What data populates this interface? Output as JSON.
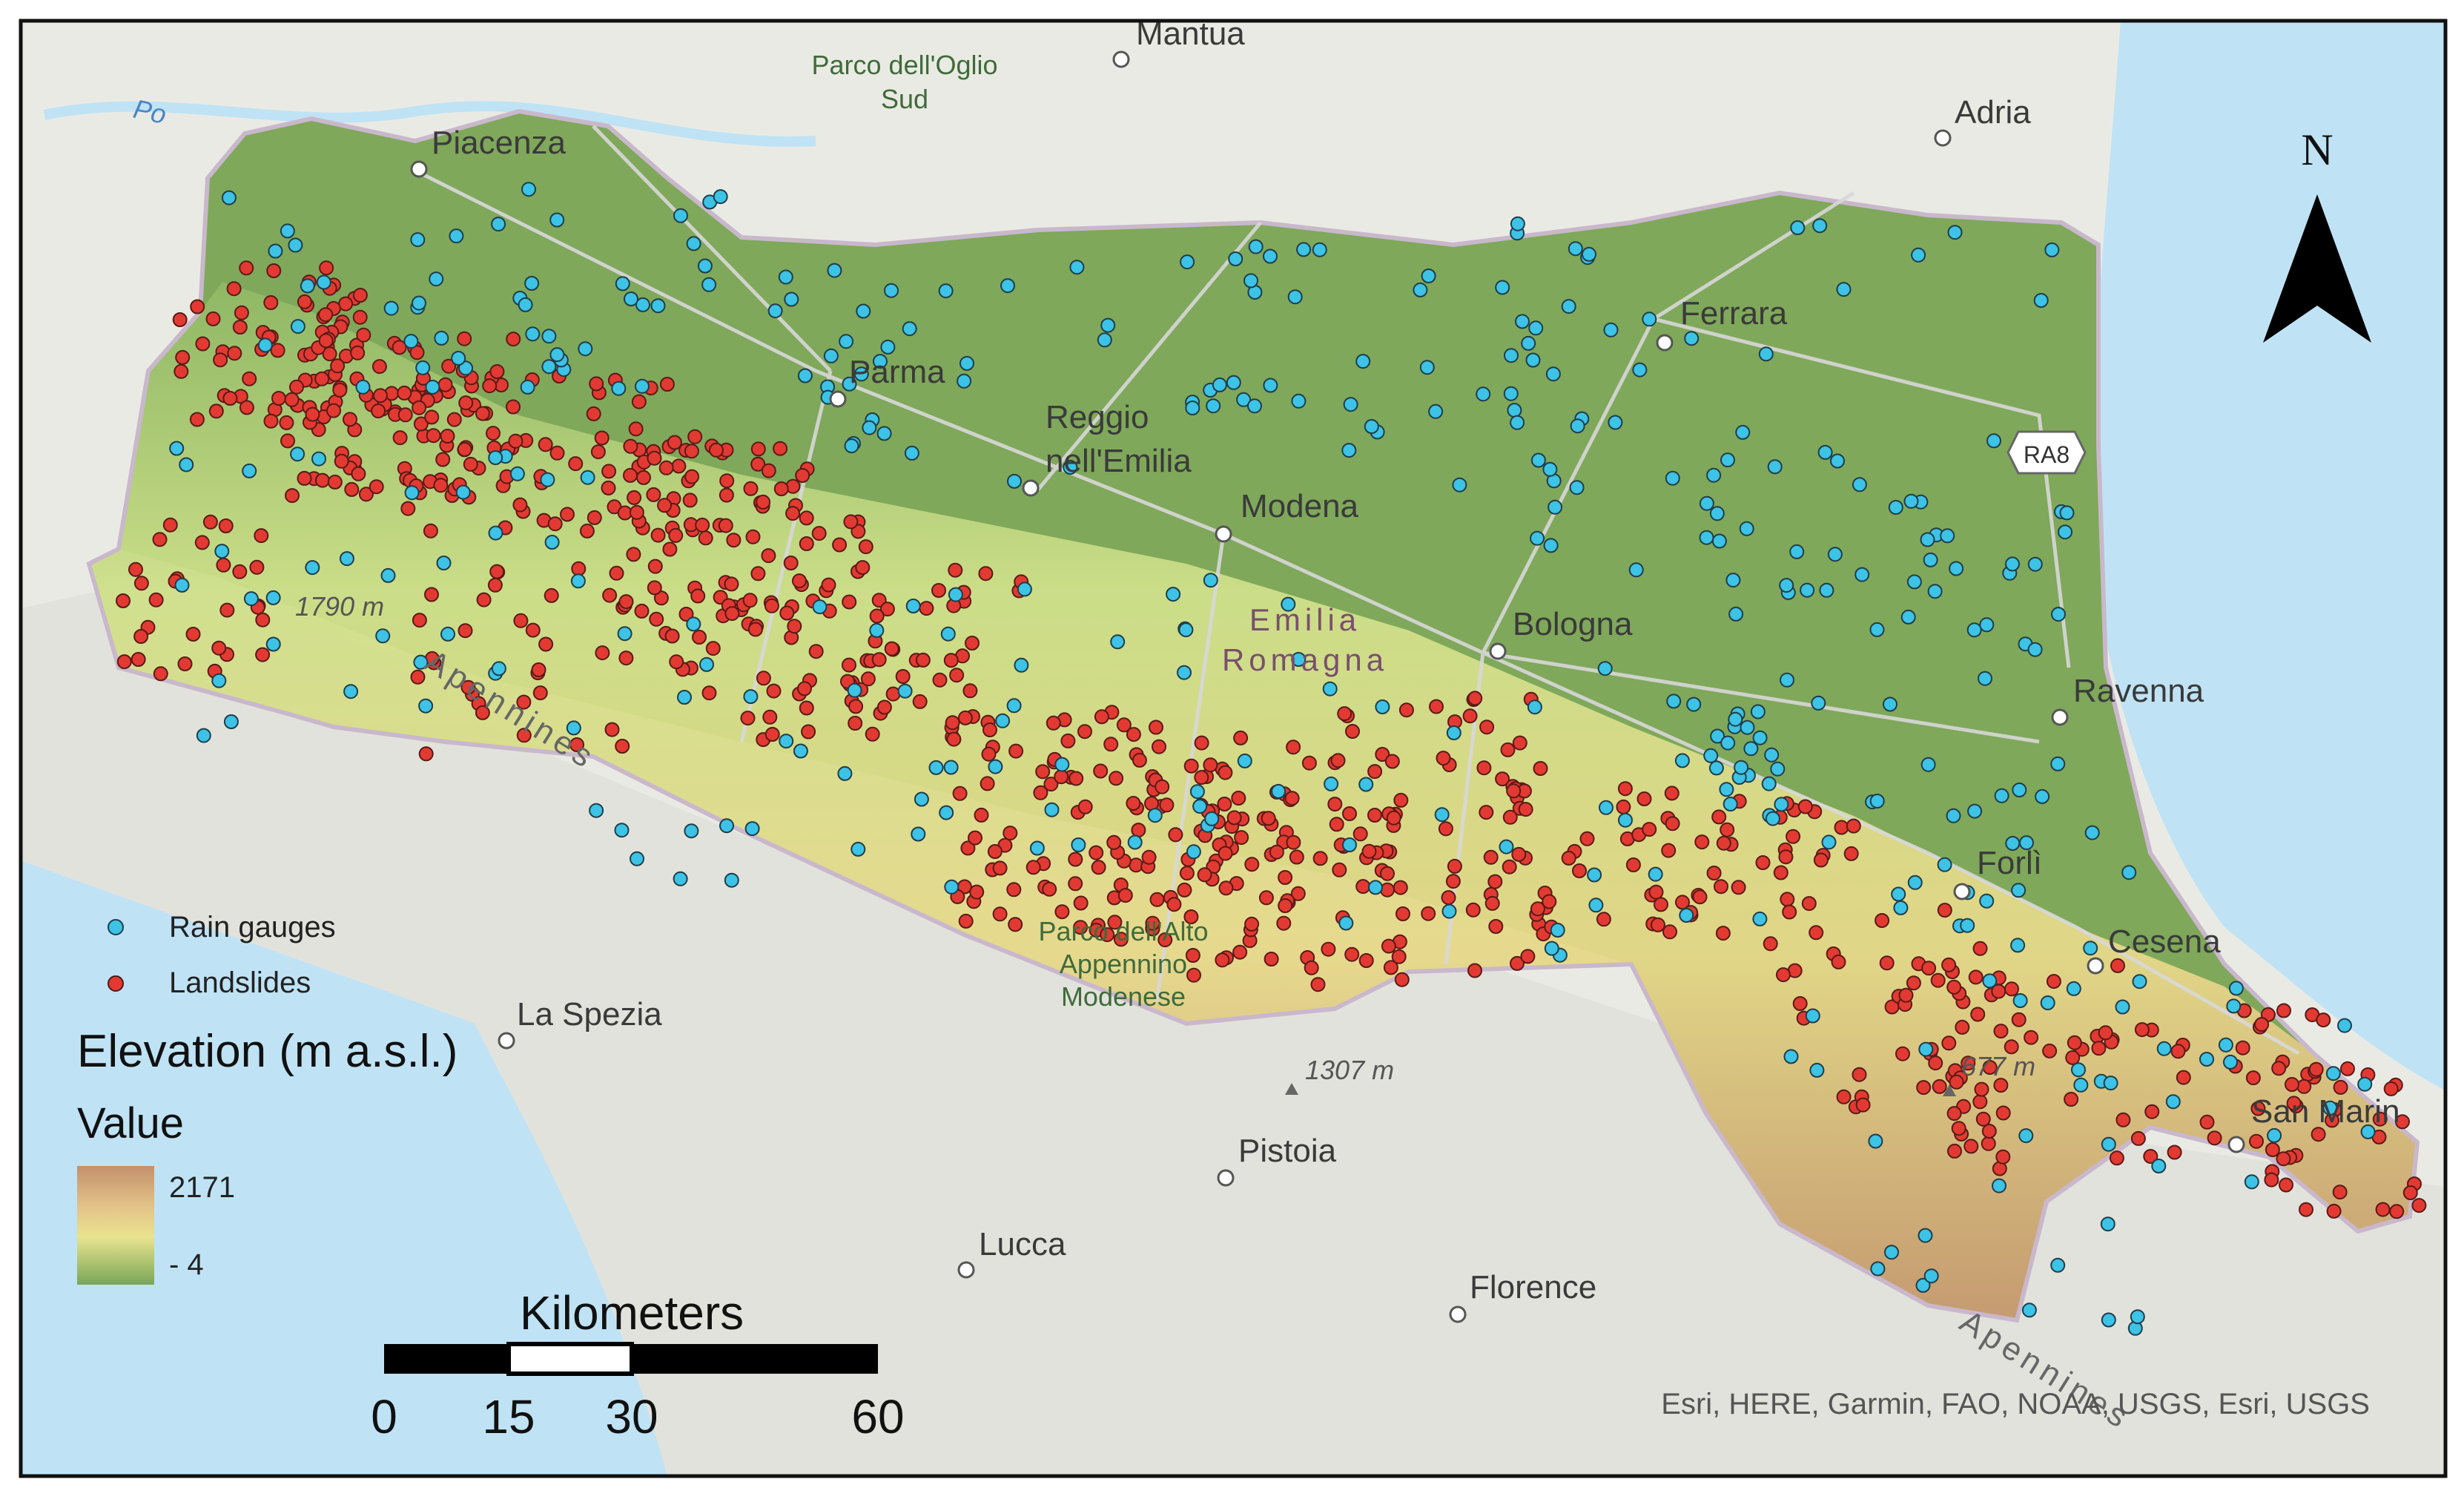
{
  "map": {
    "region_label_line1": "Emilia",
    "region_label_line2": "Romagna",
    "cities": [
      "Mantua",
      "Piacenza",
      "Parma",
      "Reggio",
      "nell'Emilia",
      "Modena",
      "Ferrara",
      "Adria",
      "Bologna",
      "Ravenna",
      "Forlì",
      "Cesena",
      "San Marin",
      "La Spezia",
      "Pistoia",
      "Lucca",
      "Florence"
    ],
    "parks": {
      "oglio_line1": "Parco dell'Oglio",
      "oglio_line2": "Sud",
      "alto_line1": "Parco dell'Alto",
      "alto_line2": "Appennino",
      "alto_line3": "Modenese"
    },
    "peaks": [
      "1790 m",
      "1307 m",
      "677 m"
    ],
    "river": "Po",
    "range_label": "Apennines",
    "road_shield": "RA8",
    "north_label": "N",
    "attribution": "Esri, HERE, Garmin, FAO, NOAA, USGS, Esri, USGS"
  },
  "legend": {
    "rain_gauges": "Rain gauges",
    "landslides": "Landslides",
    "elevation_title": "Elevation (m a.s.l.)",
    "value_label": "Value",
    "max": "2171",
    "min": "- 4",
    "colors": {
      "rain_gauge": "#3cc3e6",
      "landslide": "#e23a32",
      "ramp_high": "#c99b72",
      "ramp_mid": "#e8df8a",
      "ramp_low": "#7fa85a"
    }
  },
  "scale_bar": {
    "title": "Kilometers",
    "ticks": [
      "0",
      "15",
      "30",
      "60"
    ]
  }
}
